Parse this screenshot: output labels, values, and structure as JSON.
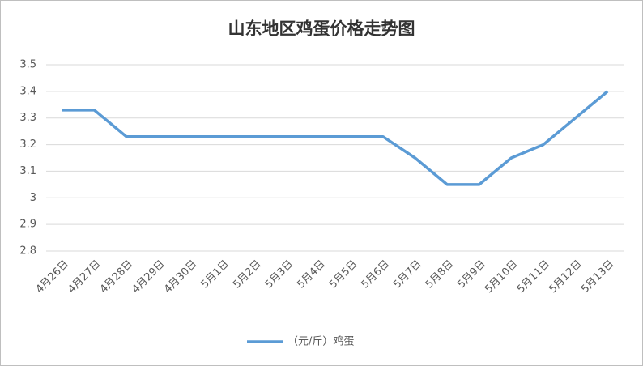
{
  "chart_data": {
    "type": "line",
    "title": "山东地区鸡蛋价格走势图",
    "categories": [
      "4月26日",
      "4月27日",
      "4月28日",
      "4月29日",
      "4月30日",
      "5月1日",
      "5月2日",
      "5月3日",
      "5月4日",
      "5月5日",
      "5月6日",
      "5月7日",
      "5月8日",
      "5月9日",
      "5月10日",
      "5月11日",
      "5月12日",
      "5月13日"
    ],
    "series": [
      {
        "name": "（元/斤）鸡蛋",
        "color": "#5b9bd5",
        "values": [
          3.33,
          3.33,
          3.23,
          3.23,
          3.23,
          3.23,
          3.23,
          3.23,
          3.23,
          3.23,
          3.23,
          3.15,
          3.05,
          3.05,
          3.15,
          3.2,
          3.3,
          3.4
        ]
      }
    ],
    "ylim": [
      2.8,
      3.5
    ],
    "yticks": [
      2.8,
      2.9,
      3,
      3.1,
      3.2,
      3.3,
      3.4,
      3.5
    ],
    "grid": true,
    "legend": "bottom"
  }
}
